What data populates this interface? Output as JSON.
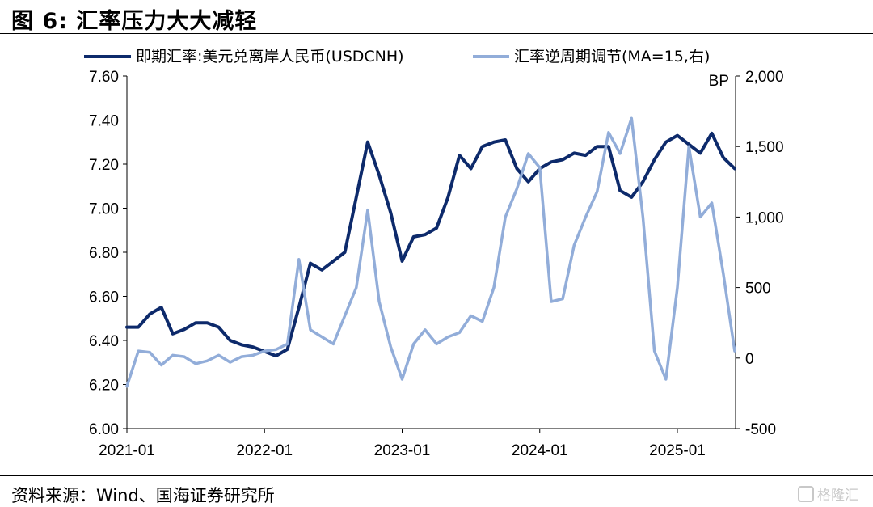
{
  "figure": {
    "title": "图 6:  汇率压力大大减轻",
    "source": "资料来源：Wind、国海证券研究所",
    "watermark": "格隆汇"
  },
  "chart_data": {
    "type": "line",
    "title": "图 6:  汇率压力大大减轻",
    "legend_position": "top",
    "grid": false,
    "x_ticks": [
      "2021-01",
      "2022-01",
      "2023-01",
      "2024-01",
      "2025-01"
    ],
    "y_left": {
      "min": 6.0,
      "max": 7.6,
      "ticks": [
        "6.00",
        "6.20",
        "6.40",
        "6.60",
        "6.80",
        "7.00",
        "7.20",
        "7.40",
        "7.60"
      ]
    },
    "y_right": {
      "min": -500,
      "max": 2000,
      "unit": "BP",
      "ticks": [
        "-500",
        "0",
        "500",
        "1,000",
        "1,500",
        "2,000"
      ]
    },
    "series": [
      {
        "name": "即期汇率:美元兑离岸人民币(USDCNH)",
        "axis": "left",
        "color": "#0d2a6b",
        "x": [
          "2021-01",
          "2021-02",
          "2021-03",
          "2021-04",
          "2021-05",
          "2021-06",
          "2021-07",
          "2021-08",
          "2021-09",
          "2021-10",
          "2021-11",
          "2021-12",
          "2022-01",
          "2022-02",
          "2022-03",
          "2022-04",
          "2022-05",
          "2022-06",
          "2022-07",
          "2022-08",
          "2022-09",
          "2022-10",
          "2022-11",
          "2022-12",
          "2023-01",
          "2023-02",
          "2023-03",
          "2023-04",
          "2023-05",
          "2023-06",
          "2023-07",
          "2023-08",
          "2023-09",
          "2023-10",
          "2023-11",
          "2023-12",
          "2024-01",
          "2024-02",
          "2024-03",
          "2024-04",
          "2024-05",
          "2024-06",
          "2024-07",
          "2024-08",
          "2024-09",
          "2024-10",
          "2024-11",
          "2024-12",
          "2025-01",
          "2025-02",
          "2025-03",
          "2025-04",
          "2025-05",
          "2025-06"
        ],
        "values": [
          6.46,
          6.46,
          6.52,
          6.55,
          6.43,
          6.45,
          6.48,
          6.48,
          6.46,
          6.4,
          6.38,
          6.37,
          6.35,
          6.33,
          6.36,
          6.55,
          6.75,
          6.72,
          6.76,
          6.8,
          7.05,
          7.3,
          7.15,
          6.98,
          6.76,
          6.87,
          6.88,
          6.91,
          7.05,
          7.24,
          7.18,
          7.28,
          7.3,
          7.31,
          7.18,
          7.12,
          7.18,
          7.21,
          7.22,
          7.25,
          7.24,
          7.28,
          7.28,
          7.08,
          7.05,
          7.12,
          7.22,
          7.3,
          7.33,
          7.29,
          7.25,
          7.34,
          7.23,
          7.18
        ]
      },
      {
        "name": "汇率逆周期调节(MA=15,右)",
        "axis": "right",
        "color": "#92add9",
        "x": [
          "2021-01",
          "2021-02",
          "2021-03",
          "2021-04",
          "2021-05",
          "2021-06",
          "2021-07",
          "2021-08",
          "2021-09",
          "2021-10",
          "2021-11",
          "2021-12",
          "2022-01",
          "2022-02",
          "2022-03",
          "2022-04",
          "2022-05",
          "2022-06",
          "2022-07",
          "2022-08",
          "2022-09",
          "2022-10",
          "2022-11",
          "2022-12",
          "2023-01",
          "2023-02",
          "2023-03",
          "2023-04",
          "2023-05",
          "2023-06",
          "2023-07",
          "2023-08",
          "2023-09",
          "2023-10",
          "2023-11",
          "2023-12",
          "2024-01",
          "2024-02",
          "2024-03",
          "2024-04",
          "2024-05",
          "2024-06",
          "2024-07",
          "2024-08",
          "2024-09",
          "2024-10",
          "2024-11",
          "2024-12",
          "2025-01",
          "2025-02",
          "2025-03",
          "2025-04",
          "2025-05",
          "2025-06"
        ],
        "values": [
          -200,
          50,
          40,
          -50,
          20,
          10,
          -40,
          -20,
          20,
          -30,
          10,
          20,
          50,
          60,
          100,
          700,
          200,
          150,
          100,
          300,
          500,
          1050,
          400,
          80,
          -150,
          100,
          200,
          100,
          150,
          180,
          300,
          260,
          500,
          1000,
          1200,
          1450,
          1350,
          400,
          420,
          800,
          1000,
          1180,
          1600,
          1450,
          1700,
          1000,
          50,
          -150,
          500,
          1500,
          1000,
          1100,
          600,
          50
        ]
      }
    ]
  }
}
